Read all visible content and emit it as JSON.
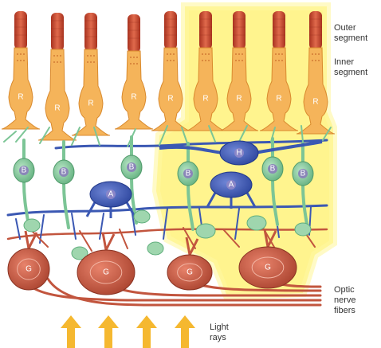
{
  "colors": {
    "rod_outer": "#c9412a",
    "rod_inner": "#f5b45a",
    "bipolar": "#7cc596",
    "horizontal": "#3b58b3",
    "amacrine": "#3b58b3",
    "ganglion": "#c2553e",
    "nerve_fibers": "#c2553e",
    "highlight": "#fff27a",
    "light_arrow": "#f5b830"
  },
  "labels": {
    "outer_segment": [
      "Outer",
      "segment"
    ],
    "inner_segment": [
      "Inner",
      "segment"
    ],
    "optic_nerve": [
      "Optic",
      "nerve",
      "fibers"
    ],
    "light_rays": [
      "Light",
      "rays"
    ]
  },
  "cells": {
    "rod": "R",
    "bipolar": "B",
    "horizontal": "H",
    "amacrine": "A",
    "ganglion": "G"
  },
  "icons": {
    "light_arrow": "up-arrow-icon"
  }
}
